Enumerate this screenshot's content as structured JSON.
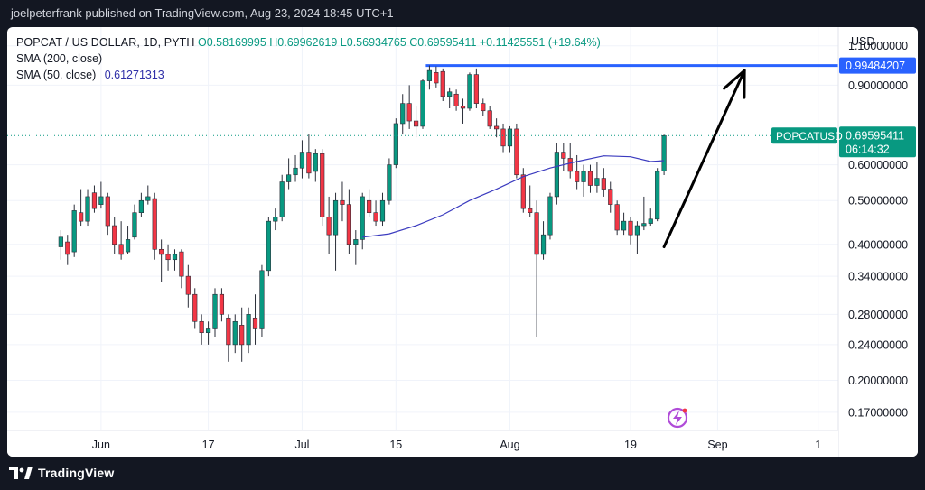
{
  "header": {
    "text": "joelpeterfrank published on TradingView.com, Aug 23, 2024 18:45 UTC+1"
  },
  "legend": {
    "line1": "POPCAT / US DOLLAR, 1D, PYTH",
    "ohlc": "O0.58169995 H0.69962619 L0.56934765 C0.69595411 +0.11425551 (+19.64%)",
    "sma200": "SMA (200, close)",
    "sma50_label": "SMA (50, close)",
    "sma50_value": "0.61271313"
  },
  "footer": {
    "brand": "TradingView"
  },
  "chart_data": {
    "type": "candlestick",
    "symbol": "POPCATUSD",
    "currency": "USD",
    "scale": "log",
    "colors": {
      "up": "#089981",
      "down": "#f23645",
      "sma": "#3b3bbf",
      "level": "#2962ff",
      "arrow": "#000000",
      "price_tag": "#089981"
    },
    "y_ticks": [
      "1.10000000",
      "0.90000000",
      "0.60000000",
      "0.50000000",
      "0.40000000",
      "0.34000000",
      "0.28000000",
      "0.24000000",
      "0.20000000",
      "0.17000000"
    ],
    "y_tick_values": [
      1.1,
      0.9,
      0.6,
      0.5,
      0.4,
      0.34,
      0.28,
      0.24,
      0.2,
      0.17
    ],
    "ylim": [
      0.155,
      1.21
    ],
    "x_ticks": [
      "Jun",
      "17",
      "Jul",
      "15",
      "Aug",
      "19",
      "Sep",
      "1"
    ],
    "x_tick_days": [
      3,
      19,
      33,
      47,
      64,
      82,
      95,
      110
    ],
    "x_range_days": [
      -11,
      113
    ],
    "candles": [
      {
        "d": -3,
        "o": 0.395,
        "h": 0.43,
        "l": 0.37,
        "c": 0.415
      },
      {
        "d": -2,
        "o": 0.405,
        "h": 0.42,
        "l": 0.36,
        "c": 0.38
      },
      {
        "d": -1,
        "o": 0.385,
        "h": 0.49,
        "l": 0.375,
        "c": 0.475
      },
      {
        "d": 0,
        "o": 0.47,
        "h": 0.53,
        "l": 0.44,
        "c": 0.45
      },
      {
        "d": 1,
        "o": 0.45,
        "h": 0.53,
        "l": 0.44,
        "c": 0.51
      },
      {
        "d": 2,
        "o": 0.52,
        "h": 0.54,
        "l": 0.47,
        "c": 0.48
      },
      {
        "d": 3,
        "o": 0.49,
        "h": 0.55,
        "l": 0.48,
        "c": 0.51
      },
      {
        "d": 4,
        "o": 0.51,
        "h": 0.52,
        "l": 0.42,
        "c": 0.44
      },
      {
        "d": 5,
        "o": 0.44,
        "h": 0.46,
        "l": 0.38,
        "c": 0.4
      },
      {
        "d": 6,
        "o": 0.4,
        "h": 0.45,
        "l": 0.37,
        "c": 0.38
      },
      {
        "d": 7,
        "o": 0.385,
        "h": 0.44,
        "l": 0.38,
        "c": 0.41
      },
      {
        "d": 8,
        "o": 0.415,
        "h": 0.49,
        "l": 0.41,
        "c": 0.47
      },
      {
        "d": 9,
        "o": 0.47,
        "h": 0.52,
        "l": 0.46,
        "c": 0.5
      },
      {
        "d": 10,
        "o": 0.5,
        "h": 0.54,
        "l": 0.49,
        "c": 0.51
      },
      {
        "d": 11,
        "o": 0.505,
        "h": 0.52,
        "l": 0.37,
        "c": 0.39
      },
      {
        "d": 12,
        "o": 0.39,
        "h": 0.41,
        "l": 0.33,
        "c": 0.38
      },
      {
        "d": 13,
        "o": 0.38,
        "h": 0.4,
        "l": 0.35,
        "c": 0.37
      },
      {
        "d": 14,
        "o": 0.37,
        "h": 0.39,
        "l": 0.35,
        "c": 0.38
      },
      {
        "d": 15,
        "o": 0.385,
        "h": 0.39,
        "l": 0.32,
        "c": 0.34
      },
      {
        "d": 16,
        "o": 0.34,
        "h": 0.36,
        "l": 0.29,
        "c": 0.31
      },
      {
        "d": 17,
        "o": 0.31,
        "h": 0.32,
        "l": 0.26,
        "c": 0.27
      },
      {
        "d": 18,
        "o": 0.27,
        "h": 0.28,
        "l": 0.24,
        "c": 0.255
      },
      {
        "d": 19,
        "o": 0.255,
        "h": 0.27,
        "l": 0.24,
        "c": 0.26
      },
      {
        "d": 20,
        "o": 0.26,
        "h": 0.32,
        "l": 0.25,
        "c": 0.31
      },
      {
        "d": 21,
        "o": 0.31,
        "h": 0.32,
        "l": 0.27,
        "c": 0.28
      },
      {
        "d": 22,
        "o": 0.275,
        "h": 0.28,
        "l": 0.22,
        "c": 0.24
      },
      {
        "d": 23,
        "o": 0.24,
        "h": 0.28,
        "l": 0.23,
        "c": 0.27
      },
      {
        "d": 24,
        "o": 0.265,
        "h": 0.29,
        "l": 0.22,
        "c": 0.24
      },
      {
        "d": 25,
        "o": 0.24,
        "h": 0.29,
        "l": 0.23,
        "c": 0.28
      },
      {
        "d": 26,
        "o": 0.275,
        "h": 0.31,
        "l": 0.24,
        "c": 0.26
      },
      {
        "d": 27,
        "o": 0.26,
        "h": 0.36,
        "l": 0.25,
        "c": 0.35
      },
      {
        "d": 28,
        "o": 0.35,
        "h": 0.46,
        "l": 0.34,
        "c": 0.45
      },
      {
        "d": 29,
        "o": 0.45,
        "h": 0.48,
        "l": 0.43,
        "c": 0.46
      },
      {
        "d": 30,
        "o": 0.46,
        "h": 0.57,
        "l": 0.45,
        "c": 0.55
      },
      {
        "d": 31,
        "o": 0.55,
        "h": 0.62,
        "l": 0.53,
        "c": 0.57
      },
      {
        "d": 32,
        "o": 0.57,
        "h": 0.63,
        "l": 0.55,
        "c": 0.59
      },
      {
        "d": 33,
        "o": 0.59,
        "h": 0.68,
        "l": 0.56,
        "c": 0.64
      },
      {
        "d": 34,
        "o": 0.64,
        "h": 0.7,
        "l": 0.56,
        "c": 0.575
      },
      {
        "d": 35,
        "o": 0.58,
        "h": 0.65,
        "l": 0.55,
        "c": 0.635
      },
      {
        "d": 36,
        "o": 0.635,
        "h": 0.65,
        "l": 0.44,
        "c": 0.46
      },
      {
        "d": 37,
        "o": 0.46,
        "h": 0.51,
        "l": 0.38,
        "c": 0.42
      },
      {
        "d": 38,
        "o": 0.42,
        "h": 0.52,
        "l": 0.35,
        "c": 0.5
      },
      {
        "d": 39,
        "o": 0.5,
        "h": 0.55,
        "l": 0.45,
        "c": 0.49
      },
      {
        "d": 40,
        "o": 0.49,
        "h": 0.53,
        "l": 0.38,
        "c": 0.4
      },
      {
        "d": 41,
        "o": 0.4,
        "h": 0.43,
        "l": 0.36,
        "c": 0.41
      },
      {
        "d": 42,
        "o": 0.41,
        "h": 0.52,
        "l": 0.39,
        "c": 0.51
      },
      {
        "d": 43,
        "o": 0.5,
        "h": 0.53,
        "l": 0.46,
        "c": 0.47
      },
      {
        "d": 44,
        "o": 0.47,
        "h": 0.5,
        "l": 0.44,
        "c": 0.45
      },
      {
        "d": 45,
        "o": 0.45,
        "h": 0.52,
        "l": 0.44,
        "c": 0.5
      },
      {
        "d": 46,
        "o": 0.5,
        "h": 0.62,
        "l": 0.49,
        "c": 0.6
      },
      {
        "d": 47,
        "o": 0.6,
        "h": 0.76,
        "l": 0.59,
        "c": 0.74
      },
      {
        "d": 48,
        "o": 0.74,
        "h": 0.86,
        "l": 0.7,
        "c": 0.82
      },
      {
        "d": 49,
        "o": 0.82,
        "h": 0.9,
        "l": 0.72,
        "c": 0.75
      },
      {
        "d": 50,
        "o": 0.75,
        "h": 0.81,
        "l": 0.69,
        "c": 0.73
      },
      {
        "d": 51,
        "o": 0.73,
        "h": 0.93,
        "l": 0.72,
        "c": 0.92
      },
      {
        "d": 52,
        "o": 0.92,
        "h": 0.995,
        "l": 0.88,
        "c": 0.97
      },
      {
        "d": 53,
        "o": 0.96,
        "h": 0.99,
        "l": 0.89,
        "c": 0.91
      },
      {
        "d": 54,
        "o": 0.965,
        "h": 0.98,
        "l": 0.83,
        "c": 0.85
      },
      {
        "d": 55,
        "o": 0.85,
        "h": 0.89,
        "l": 0.8,
        "c": 0.87
      },
      {
        "d": 56,
        "o": 0.86,
        "h": 0.88,
        "l": 0.79,
        "c": 0.81
      },
      {
        "d": 57,
        "o": 0.81,
        "h": 0.84,
        "l": 0.74,
        "c": 0.8
      },
      {
        "d": 58,
        "o": 0.8,
        "h": 0.96,
        "l": 0.79,
        "c": 0.95
      },
      {
        "d": 59,
        "o": 0.95,
        "h": 0.98,
        "l": 0.8,
        "c": 0.82
      },
      {
        "d": 60,
        "o": 0.82,
        "h": 0.84,
        "l": 0.77,
        "c": 0.79
      },
      {
        "d": 61,
        "o": 0.79,
        "h": 0.81,
        "l": 0.72,
        "c": 0.73
      },
      {
        "d": 62,
        "o": 0.73,
        "h": 0.76,
        "l": 0.69,
        "c": 0.72
      },
      {
        "d": 63,
        "o": 0.72,
        "h": 0.74,
        "l": 0.64,
        "c": 0.66
      },
      {
        "d": 64,
        "o": 0.66,
        "h": 0.73,
        "l": 0.64,
        "c": 0.72
      },
      {
        "d": 65,
        "o": 0.72,
        "h": 0.74,
        "l": 0.56,
        "c": 0.57
      },
      {
        "d": 66,
        "o": 0.57,
        "h": 0.59,
        "l": 0.47,
        "c": 0.48
      },
      {
        "d": 67,
        "o": 0.48,
        "h": 0.54,
        "l": 0.46,
        "c": 0.47
      },
      {
        "d": 68,
        "o": 0.47,
        "h": 0.5,
        "l": 0.25,
        "c": 0.38
      },
      {
        "d": 69,
        "o": 0.38,
        "h": 0.45,
        "l": 0.37,
        "c": 0.42
      },
      {
        "d": 70,
        "o": 0.42,
        "h": 0.52,
        "l": 0.41,
        "c": 0.51
      },
      {
        "d": 71,
        "o": 0.51,
        "h": 0.67,
        "l": 0.49,
        "c": 0.64
      },
      {
        "d": 72,
        "o": 0.64,
        "h": 0.67,
        "l": 0.58,
        "c": 0.62
      },
      {
        "d": 73,
        "o": 0.62,
        "h": 0.67,
        "l": 0.56,
        "c": 0.58
      },
      {
        "d": 74,
        "o": 0.58,
        "h": 0.63,
        "l": 0.53,
        "c": 0.55
      },
      {
        "d": 75,
        "o": 0.55,
        "h": 0.6,
        "l": 0.51,
        "c": 0.58
      },
      {
        "d": 76,
        "o": 0.58,
        "h": 0.6,
        "l": 0.52,
        "c": 0.54
      },
      {
        "d": 77,
        "o": 0.54,
        "h": 0.61,
        "l": 0.52,
        "c": 0.56
      },
      {
        "d": 78,
        "o": 0.56,
        "h": 0.59,
        "l": 0.51,
        "c": 0.53
      },
      {
        "d": 79,
        "o": 0.53,
        "h": 0.55,
        "l": 0.47,
        "c": 0.49
      },
      {
        "d": 80,
        "o": 0.49,
        "h": 0.5,
        "l": 0.42,
        "c": 0.43
      },
      {
        "d": 81,
        "o": 0.43,
        "h": 0.47,
        "l": 0.42,
        "c": 0.45
      },
      {
        "d": 82,
        "o": 0.45,
        "h": 0.46,
        "l": 0.4,
        "c": 0.42
      },
      {
        "d": 83,
        "o": 0.42,
        "h": 0.45,
        "l": 0.38,
        "c": 0.44
      },
      {
        "d": 84,
        "o": 0.44,
        "h": 0.51,
        "l": 0.43,
        "c": 0.445
      },
      {
        "d": 85,
        "o": 0.445,
        "h": 0.48,
        "l": 0.44,
        "c": 0.455
      },
      {
        "d": 86,
        "o": 0.455,
        "h": 0.59,
        "l": 0.45,
        "c": 0.58
      },
      {
        "d": 87,
        "o": 0.58169995,
        "h": 0.69962619,
        "l": 0.56934765,
        "c": 0.69595411
      }
    ],
    "sma50": [
      {
        "d": 42,
        "v": 0.415
      },
      {
        "d": 46,
        "v": 0.422
      },
      {
        "d": 50,
        "v": 0.44
      },
      {
        "d": 54,
        "v": 0.465
      },
      {
        "d": 58,
        "v": 0.5
      },
      {
        "d": 62,
        "v": 0.53
      },
      {
        "d": 66,
        "v": 0.565
      },
      {
        "d": 70,
        "v": 0.59
      },
      {
        "d": 74,
        "v": 0.61
      },
      {
        "d": 78,
        "v": 0.628
      },
      {
        "d": 82,
        "v": 0.625
      },
      {
        "d": 85,
        "v": 0.61
      },
      {
        "d": 87,
        "v": 0.6127
      }
    ],
    "horizontal_line": {
      "value": 0.99484207,
      "label": "0.99484207",
      "from_day": 52
    },
    "last_price": {
      "label": "POPCATUSD",
      "value": "0.69595411",
      "countdown": "06:14:32",
      "price": 0.69595411
    },
    "arrow": {
      "from": {
        "d": 87,
        "v": 0.395
      },
      "to": {
        "d": 99,
        "v": 0.97
      }
    }
  }
}
